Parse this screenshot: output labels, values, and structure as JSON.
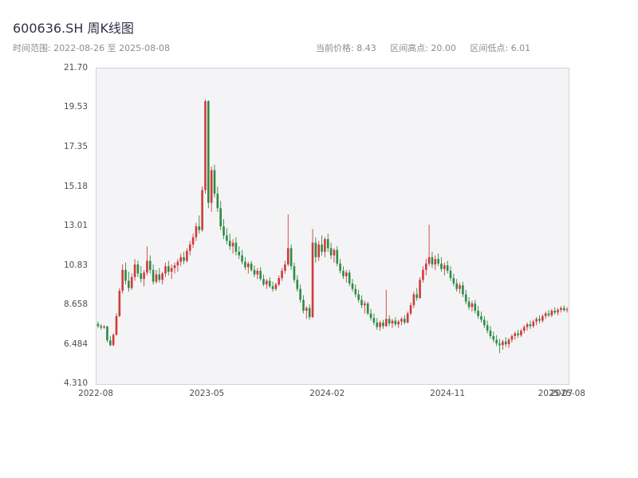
{
  "header": {
    "title": "600636.SH 周K线图",
    "subtitle_left": "时间范围: 2022-08-26 至 2025-08-08",
    "current_price_label": "当前价格: 8.43",
    "range_high_label": "区间高点: 20.00",
    "range_low_label": "区间低点: 6.01"
  },
  "chart_data": {
    "type": "candlestick",
    "title": "600636.SH 周K线图",
    "interval": "weekly",
    "date_range": {
      "start": "2022-08-26",
      "end": "2025-08-08"
    },
    "current_price": 8.43,
    "range_high": 20.0,
    "range_low": 6.01,
    "up_color": "#cf3a3a",
    "down_color": "#2e8b44",
    "plot_bg": "#f4f4f6",
    "ylim": [
      4.31,
      21.702
    ],
    "y_ticks": [
      "21.70",
      "19.53",
      "17.35",
      "15.18",
      "13.01",
      "10.83",
      "8.658",
      "6.484",
      "4.310"
    ],
    "x_ticks": [
      {
        "label": "2022-08",
        "pos": 0.0
      },
      {
        "label": "2023-05",
        "pos": 0.2353
      },
      {
        "label": "2024-02",
        "pos": 0.4902
      },
      {
        "label": "2024-11",
        "pos": 0.7451
      },
      {
        "label": "2025-07",
        "pos": 0.9739
      },
      {
        "label": "2025-08",
        "pos": 1.0
      }
    ],
    "candles": [
      [
        7.62,
        7.75,
        7.4,
        7.5
      ],
      [
        7.5,
        7.62,
        7.3,
        7.42
      ],
      [
        7.42,
        7.55,
        7.35,
        7.48
      ],
      [
        7.48,
        7.52,
        6.6,
        6.72
      ],
      [
        6.72,
        6.95,
        6.38,
        6.45
      ],
      [
        6.45,
        7.1,
        6.4,
        7.02
      ],
      [
        7.02,
        8.2,
        6.98,
        8.05
      ],
      [
        8.05,
        9.6,
        8.0,
        9.45
      ],
      [
        9.45,
        10.9,
        9.3,
        10.6
      ],
      [
        10.6,
        11.0,
        9.8,
        10.0
      ],
      [
        10.0,
        10.5,
        9.4,
        9.6
      ],
      [
        9.6,
        10.4,
        9.5,
        10.2
      ],
      [
        10.2,
        11.2,
        10.0,
        10.9
      ],
      [
        10.9,
        11.1,
        10.2,
        10.4
      ],
      [
        10.4,
        10.8,
        9.9,
        10.1
      ],
      [
        10.1,
        10.6,
        9.7,
        10.45
      ],
      [
        10.45,
        11.9,
        10.3,
        11.1
      ],
      [
        11.1,
        11.4,
        10.4,
        10.6
      ],
      [
        10.6,
        10.9,
        9.8,
        9.95
      ],
      [
        9.95,
        10.6,
        9.85,
        10.35
      ],
      [
        10.35,
        10.7,
        9.9,
        10.05
      ],
      [
        10.05,
        10.5,
        9.8,
        10.4
      ],
      [
        10.4,
        11.0,
        10.2,
        10.8
      ],
      [
        10.8,
        11.1,
        10.3,
        10.5
      ],
      [
        10.5,
        10.9,
        10.1,
        10.7
      ],
      [
        10.7,
        11.0,
        10.4,
        10.85
      ],
      [
        10.85,
        11.2,
        10.5,
        11.05
      ],
      [
        11.05,
        11.5,
        10.8,
        11.3
      ],
      [
        11.3,
        11.6,
        10.9,
        11.1
      ],
      [
        11.1,
        11.8,
        11.0,
        11.65
      ],
      [
        11.65,
        12.2,
        11.4,
        12.0
      ],
      [
        12.0,
        12.6,
        11.8,
        12.4
      ],
      [
        12.4,
        13.2,
        12.2,
        13.0
      ],
      [
        13.0,
        13.6,
        12.6,
        12.8
      ],
      [
        12.8,
        15.2,
        12.7,
        15.0
      ],
      [
        15.0,
        20.0,
        14.8,
        19.9
      ],
      [
        19.9,
        19.95,
        14.0,
        14.3
      ],
      [
        14.3,
        16.3,
        13.8,
        16.1
      ],
      [
        16.1,
        16.4,
        14.6,
        14.8
      ],
      [
        14.8,
        15.2,
        13.8,
        14.0
      ],
      [
        14.0,
        14.4,
        12.8,
        13.0
      ],
      [
        13.0,
        13.4,
        12.3,
        12.5
      ],
      [
        12.5,
        12.9,
        12.0,
        12.2
      ],
      [
        12.2,
        12.6,
        11.7,
        11.9
      ],
      [
        11.9,
        12.3,
        11.5,
        12.1
      ],
      [
        12.1,
        12.4,
        11.4,
        11.6
      ],
      [
        11.6,
        11.9,
        11.2,
        11.4
      ],
      [
        11.4,
        11.7,
        10.9,
        11.05
      ],
      [
        11.05,
        11.3,
        10.6,
        10.75
      ],
      [
        10.75,
        11.05,
        10.4,
        10.95
      ],
      [
        10.95,
        11.1,
        10.5,
        10.6
      ],
      [
        10.6,
        10.85,
        10.2,
        10.35
      ],
      [
        10.35,
        10.7,
        10.1,
        10.55
      ],
      [
        10.55,
        10.75,
        10.0,
        10.1
      ],
      [
        10.1,
        10.35,
        9.7,
        9.8
      ],
      [
        9.8,
        10.1,
        9.55,
        10.0
      ],
      [
        10.0,
        10.2,
        9.6,
        9.7
      ],
      [
        9.7,
        9.95,
        9.4,
        9.55
      ],
      [
        9.55,
        9.9,
        9.45,
        9.8
      ],
      [
        9.8,
        10.3,
        9.7,
        10.15
      ],
      [
        10.15,
        10.7,
        10.0,
        10.55
      ],
      [
        10.55,
        11.1,
        10.4,
        10.9
      ],
      [
        10.9,
        13.66,
        10.8,
        11.8
      ],
      [
        11.8,
        12.0,
        10.6,
        10.8
      ],
      [
        10.8,
        11.0,
        9.9,
        10.05
      ],
      [
        10.05,
        10.3,
        9.4,
        9.55
      ],
      [
        9.55,
        9.8,
        8.8,
        8.95
      ],
      [
        8.95,
        9.2,
        8.2,
        8.35
      ],
      [
        8.35,
        8.6,
        7.9,
        8.5
      ],
      [
        8.5,
        8.7,
        7.85,
        8.0
      ],
      [
        8.0,
        12.85,
        7.95,
        12.1
      ],
      [
        12.1,
        12.4,
        11.0,
        11.3
      ],
      [
        11.3,
        12.2,
        11.1,
        12.0
      ],
      [
        12.0,
        12.5,
        11.4,
        11.6
      ],
      [
        11.6,
        12.4,
        11.3,
        12.3
      ],
      [
        12.3,
        12.6,
        11.6,
        11.8
      ],
      [
        11.8,
        12.1,
        11.2,
        11.4
      ],
      [
        11.4,
        11.8,
        11.0,
        11.7
      ],
      [
        11.7,
        11.9,
        10.8,
        10.95
      ],
      [
        10.95,
        11.2,
        10.4,
        10.55
      ],
      [
        10.55,
        10.8,
        10.1,
        10.25
      ],
      [
        10.25,
        10.6,
        9.9,
        10.45
      ],
      [
        10.45,
        10.6,
        9.7,
        9.85
      ],
      [
        9.85,
        10.1,
        9.4,
        9.55
      ],
      [
        9.55,
        9.8,
        9.1,
        9.25
      ],
      [
        9.25,
        9.5,
        8.8,
        8.95
      ],
      [
        8.95,
        9.2,
        8.5,
        8.65
      ],
      [
        8.65,
        8.9,
        8.2,
        8.75
      ],
      [
        8.75,
        8.85,
        8.1,
        8.2
      ],
      [
        8.2,
        8.45,
        7.8,
        7.95
      ],
      [
        7.95,
        8.2,
        7.55,
        7.7
      ],
      [
        7.7,
        7.95,
        7.3,
        7.45
      ],
      [
        7.45,
        7.8,
        7.25,
        7.7
      ],
      [
        7.7,
        7.85,
        7.35,
        7.5
      ],
      [
        7.5,
        9.5,
        7.45,
        7.9
      ],
      [
        7.9,
        8.1,
        7.5,
        7.65
      ],
      [
        7.65,
        7.9,
        7.4,
        7.8
      ],
      [
        7.8,
        8.0,
        7.5,
        7.6
      ],
      [
        7.6,
        7.85,
        7.4,
        7.75
      ],
      [
        7.75,
        8.0,
        7.55,
        7.9
      ],
      [
        7.9,
        8.1,
        7.6,
        7.7
      ],
      [
        7.7,
        8.3,
        7.65,
        8.2
      ],
      [
        8.2,
        8.8,
        8.1,
        8.65
      ],
      [
        8.65,
        9.4,
        8.5,
        9.25
      ],
      [
        9.25,
        9.6,
        8.9,
        9.05
      ],
      [
        9.05,
        10.2,
        9.0,
        10.05
      ],
      [
        10.05,
        10.8,
        9.9,
        10.6
      ],
      [
        10.6,
        11.2,
        10.3,
        10.95
      ],
      [
        10.95,
        13.1,
        10.8,
        11.3
      ],
      [
        11.3,
        11.6,
        10.7,
        10.9
      ],
      [
        10.9,
        11.4,
        10.6,
        11.2
      ],
      [
        11.2,
        11.5,
        10.8,
        10.95
      ],
      [
        10.95,
        11.3,
        10.5,
        10.65
      ],
      [
        10.65,
        11.0,
        10.3,
        10.85
      ],
      [
        10.85,
        11.1,
        10.4,
        10.55
      ],
      [
        10.55,
        10.8,
        10.0,
        10.15
      ],
      [
        10.15,
        10.4,
        9.7,
        9.85
      ],
      [
        9.85,
        10.1,
        9.4,
        9.55
      ],
      [
        9.55,
        9.9,
        9.3,
        9.75
      ],
      [
        9.75,
        9.95,
        9.1,
        9.25
      ],
      [
        9.25,
        9.5,
        8.7,
        8.85
      ],
      [
        8.85,
        9.1,
        8.4,
        8.55
      ],
      [
        8.55,
        8.9,
        8.3,
        8.75
      ],
      [
        8.75,
        8.95,
        8.2,
        8.35
      ],
      [
        8.35,
        8.6,
        7.9,
        8.05
      ],
      [
        8.05,
        8.3,
        7.7,
        7.85
      ],
      [
        7.85,
        8.05,
        7.4,
        7.55
      ],
      [
        7.55,
        7.8,
        7.1,
        7.25
      ],
      [
        7.25,
        7.5,
        6.8,
        6.95
      ],
      [
        6.95,
        7.2,
        6.6,
        6.75
      ],
      [
        6.75,
        7.0,
        6.4,
        6.55
      ],
      [
        6.55,
        6.8,
        6.01,
        6.45
      ],
      [
        6.45,
        6.75,
        6.2,
        6.65
      ],
      [
        6.65,
        6.9,
        6.35,
        6.5
      ],
      [
        6.5,
        6.85,
        6.3,
        6.75
      ],
      [
        6.75,
        7.05,
        6.6,
        6.95
      ],
      [
        6.95,
        7.2,
        6.75,
        7.1
      ],
      [
        7.1,
        7.3,
        6.85,
        7.0
      ],
      [
        7.0,
        7.35,
        6.9,
        7.25
      ],
      [
        7.25,
        7.55,
        7.1,
        7.45
      ],
      [
        7.45,
        7.7,
        7.25,
        7.6
      ],
      [
        7.6,
        7.8,
        7.35,
        7.5
      ],
      [
        7.5,
        7.85,
        7.4,
        7.75
      ],
      [
        7.75,
        8.0,
        7.55,
        7.9
      ],
      [
        7.9,
        8.1,
        7.65,
        7.8
      ],
      [
        7.8,
        8.15,
        7.7,
        8.05
      ],
      [
        8.05,
        8.3,
        7.9,
        8.2
      ],
      [
        8.2,
        8.4,
        8.0,
        8.1
      ],
      [
        8.1,
        8.45,
        8.0,
        8.35
      ],
      [
        8.35,
        8.55,
        8.15,
        8.25
      ],
      [
        8.25,
        8.5,
        8.1,
        8.4
      ],
      [
        8.4,
        8.6,
        8.25,
        8.5
      ],
      [
        8.5,
        8.65,
        8.3,
        8.38
      ],
      [
        8.38,
        8.55,
        8.25,
        8.43
      ]
    ]
  }
}
